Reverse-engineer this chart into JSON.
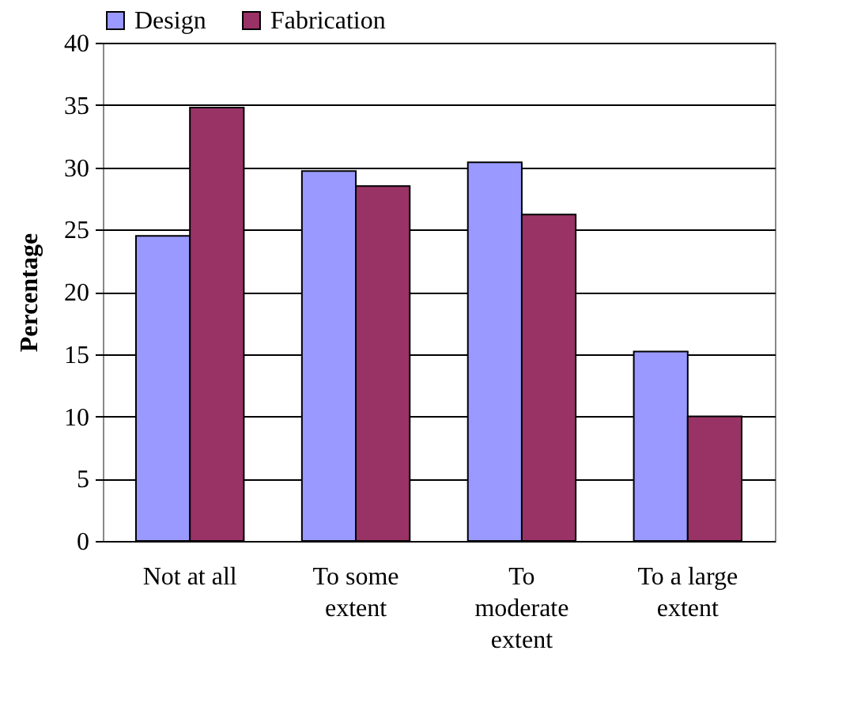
{
  "chart_data": {
    "type": "bar",
    "ylabel": "Percentage",
    "categories": [
      "Not at all",
      "To some extent",
      "To moderate extent",
      "To a large extent"
    ],
    "series": [
      {
        "name": "Design",
        "color": "#9999ff",
        "values": [
          24.5,
          29.7,
          30.4,
          15.2
        ]
      },
      {
        "name": "Fabrication",
        "color": "#993366",
        "values": [
          34.8,
          28.5,
          26.2,
          10
        ]
      }
    ],
    "ylim": [
      0,
      40
    ],
    "yticks": [
      0,
      5,
      10,
      15,
      20,
      25,
      30,
      35,
      40
    ],
    "grid": "y",
    "legend": "top"
  }
}
